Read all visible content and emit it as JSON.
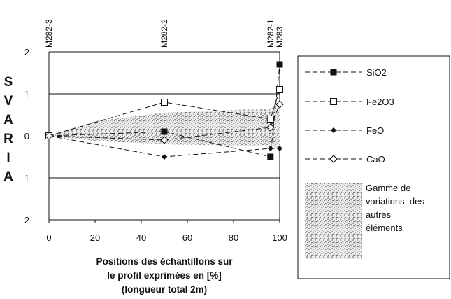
{
  "chart_data": {
    "type": "line",
    "ylabel": "SVARIA",
    "xlabel_lines": [
      "Positions des échantillons sur",
      "le profil exprimées en [%]",
      "(longueur total 2m)"
    ],
    "xlim": [
      0,
      100
    ],
    "ylim": [
      -2,
      2
    ],
    "x_ticks": [
      0,
      20,
      40,
      60,
      80,
      100
    ],
    "y_ticks": [
      2,
      1,
      0,
      -1,
      -2
    ],
    "y_tick_labels": [
      "2",
      "1",
      "0",
      "- 1",
      "- 2"
    ],
    "sample_labels": [
      {
        "x": 0,
        "label": "M282-3"
      },
      {
        "x": 50,
        "label": "M282-2"
      },
      {
        "x": 96,
        "label": "M282-1"
      },
      {
        "x": 100,
        "label": "M283"
      }
    ],
    "series": [
      {
        "name": "SiO2",
        "marker": "square-filled",
        "x": [
          0,
          50,
          96,
          100
        ],
        "y": [
          0,
          0.1,
          -0.5,
          1.7
        ]
      },
      {
        "name": "Fe2O3",
        "marker": "square-open",
        "x": [
          0,
          50,
          96,
          100
        ],
        "y": [
          0,
          0.8,
          0.4,
          1.1
        ]
      },
      {
        "name": "FeO",
        "marker": "diamond-filled",
        "x": [
          0,
          50,
          96,
          100
        ],
        "y": [
          0,
          -0.5,
          -0.3,
          -0.3
        ]
      },
      {
        "name": "CaO",
        "marker": "diamond-open",
        "x": [
          0,
          50,
          96,
          100
        ],
        "y": [
          0,
          -0.1,
          0.2,
          0.75
        ]
      }
    ],
    "range_band": {
      "name": "Gamme de variations des autres éléments",
      "legend_lines": [
        "Gamme de",
        "variations  des",
        "autres",
        "éléments"
      ],
      "x": [
        0,
        20,
        50,
        96,
        100
      ],
      "upper": [
        0,
        0.35,
        0.55,
        0.65,
        0.8
      ],
      "lower": [
        0,
        -0.12,
        -0.2,
        -0.25,
        -0.3
      ]
    }
  }
}
